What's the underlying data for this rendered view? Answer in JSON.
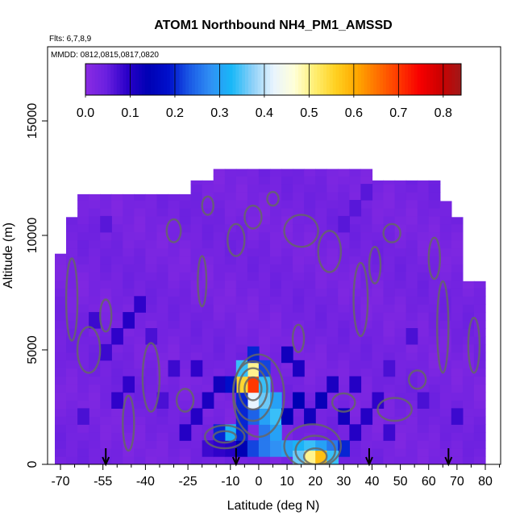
{
  "chart_data": {
    "type": "heatmap",
    "title": "ATOM1 Northbound NH4_PM1_AMSSD",
    "subtitle_lines": [
      "Flts: 6,7,8,9",
      "MMDD: 0812,0815,0817,0820"
    ],
    "xlabel": "Latitude (deg N)",
    "ylabel": "Altitude (m)",
    "xlim": [
      -72,
      85
    ],
    "ylim": [
      0,
      17500
    ],
    "x_ticks": [
      -70,
      -55,
      -40,
      -25,
      -10,
      0,
      10,
      20,
      30,
      40,
      50,
      60,
      70,
      80
    ],
    "x_tick_labels": [
      "-70",
      "-55",
      "-40",
      "-25",
      "-10",
      "0",
      "10",
      "20",
      "30",
      "40",
      "50",
      "60",
      "70",
      "80"
    ],
    "x_minor_ticks": [
      -65,
      -60,
      -50,
      -45,
      -35,
      -30,
      -20,
      -15,
      -5,
      5,
      15,
      25,
      35,
      45,
      55,
      65,
      75,
      85
    ],
    "y_ticks": [
      0,
      5000,
      10000,
      15000
    ],
    "y_tick_labels": [
      "0",
      "5000",
      "10000",
      "15000"
    ],
    "colorbar": {
      "min": 0.0,
      "max": 0.84,
      "ticks": [
        0.0,
        0.1,
        0.2,
        0.3,
        0.4,
        0.5,
        0.6,
        0.7,
        0.8
      ],
      "tick_labels": [
        "0.0",
        "0.1",
        "0.2",
        "0.3",
        "0.4",
        "0.5",
        "0.6",
        "0.7",
        "0.8"
      ],
      "colors": [
        "#8a2be2",
        "#6a20e0",
        "#2a00c8",
        "#0000b4",
        "#0010cc",
        "#1a5ae6",
        "#3090f4",
        "#18b8f8",
        "#8cd0f8",
        "#e8f4ff",
        "#ffffd8",
        "#ffee70",
        "#ffd020",
        "#ffa800",
        "#ff7000",
        "#ff3800",
        "#f80000",
        "#cc0000",
        "#a01818"
      ]
    },
    "flight_markers_lat": [
      -54,
      -8,
      39,
      67
    ],
    "profiles_lat": [
      -70,
      -66,
      -62,
      -58,
      -54,
      -50,
      -46,
      -42,
      -38,
      -34,
      -30,
      -26,
      -22,
      -18,
      -14,
      -10,
      -6,
      -2,
      2,
      6,
      10,
      14,
      18,
      22,
      26,
      30,
      34,
      38,
      42,
      46,
      50,
      54,
      58,
      62,
      66,
      70,
      74,
      78
    ],
    "profiles_top_alt": [
      9200,
      10800,
      11800,
      11800,
      11800,
      11800,
      11800,
      11800,
      11800,
      11800,
      11800,
      11800,
      12400,
      12400,
      12900,
      12900,
      12900,
      12900,
      12900,
      12900,
      12900,
      12900,
      12900,
      12900,
      12900,
      12900,
      12900,
      12900,
      12400,
      12400,
      12400,
      12400,
      12400,
      12400,
      11500,
      10800,
      8000,
      8000
    ],
    "cells": [
      {
        "x": -10,
        "y": 700,
        "v": 0.1
      },
      {
        "x": -6,
        "y": 700,
        "v": 0.14
      },
      {
        "x": -2,
        "y": 700,
        "v": 0.22
      },
      {
        "x": 2,
        "y": 700,
        "v": 0.26
      },
      {
        "x": 6,
        "y": 700,
        "v": 0.28
      },
      {
        "x": 10,
        "y": 700,
        "v": 0.3
      },
      {
        "x": 14,
        "y": 700,
        "v": 0.32
      },
      {
        "x": 18,
        "y": 700,
        "v": 0.34
      },
      {
        "x": 22,
        "y": 700,
        "v": 0.3
      },
      {
        "x": 26,
        "y": 700,
        "v": 0.26
      },
      {
        "x": 30,
        "y": 700,
        "v": 0.2
      },
      {
        "x": 18,
        "y": 250,
        "v": 0.5
      },
      {
        "x": 22,
        "y": 250,
        "v": 0.58
      },
      {
        "x": 14,
        "y": 250,
        "v": 0.36
      },
      {
        "x": 26,
        "y": 250,
        "v": 0.34
      },
      {
        "x": 2,
        "y": 1400,
        "v": 0.26
      },
      {
        "x": 6,
        "y": 1400,
        "v": 0.3
      },
      {
        "x": 2,
        "y": 2100,
        "v": 0.3
      },
      {
        "x": 6,
        "y": 2100,
        "v": 0.34
      },
      {
        "x": -2,
        "y": 2100,
        "v": 0.24
      },
      {
        "x": -2,
        "y": 2800,
        "v": 0.42
      },
      {
        "x": 2,
        "y": 2800,
        "v": 0.36
      },
      {
        "x": 6,
        "y": 2800,
        "v": 0.3
      },
      {
        "x": -6,
        "y": 2800,
        "v": 0.2
      },
      {
        "x": -2,
        "y": 3500,
        "v": 0.7
      },
      {
        "x": -6,
        "y": 3500,
        "v": 0.55
      },
      {
        "x": 2,
        "y": 3500,
        "v": 0.34
      },
      {
        "x": -10,
        "y": 3500,
        "v": 0.18
      },
      {
        "x": -2,
        "y": 4200,
        "v": 0.5
      },
      {
        "x": -6,
        "y": 4200,
        "v": 0.34
      },
      {
        "x": 2,
        "y": 4200,
        "v": 0.22
      },
      {
        "x": -2,
        "y": 4800,
        "v": 0.2
      },
      {
        "x": -6,
        "y": 2100,
        "v": 0.2
      },
      {
        "x": -10,
        "y": 1400,
        "v": 0.32
      },
      {
        "x": -14,
        "y": 1400,
        "v": 0.2
      },
      {
        "x": -6,
        "y": 1400,
        "v": 0.2
      },
      {
        "x": -18,
        "y": 700,
        "v": 0.08
      },
      {
        "x": -14,
        "y": 700,
        "v": 0.09
      },
      {
        "x": -26,
        "y": 1400,
        "v": 0.1
      },
      {
        "x": -22,
        "y": 2100,
        "v": 0.1
      },
      {
        "x": -18,
        "y": 2800,
        "v": 0.11
      },
      {
        "x": -14,
        "y": 3500,
        "v": 0.12
      },
      {
        "x": -22,
        "y": 4200,
        "v": 0.09
      },
      {
        "x": 10,
        "y": 2100,
        "v": 0.14
      },
      {
        "x": 14,
        "y": 2800,
        "v": 0.14
      },
      {
        "x": 18,
        "y": 2100,
        "v": 0.12
      },
      {
        "x": 22,
        "y": 2800,
        "v": 0.13
      },
      {
        "x": 26,
        "y": 3500,
        "v": 0.11
      },
      {
        "x": 30,
        "y": 2100,
        "v": 0.12
      },
      {
        "x": 34,
        "y": 1400,
        "v": 0.1
      },
      {
        "x": 38,
        "y": 2100,
        "v": 0.1
      },
      {
        "x": 42,
        "y": 2800,
        "v": 0.09
      },
      {
        "x": 46,
        "y": 1400,
        "v": 0.08
      },
      {
        "x": 34,
        "y": 3500,
        "v": 0.1
      },
      {
        "x": 14,
        "y": 4200,
        "v": 0.11
      },
      {
        "x": 10,
        "y": 4800,
        "v": 0.12
      },
      {
        "x": -50,
        "y": 5600,
        "v": 0.09
      },
      {
        "x": -46,
        "y": 6300,
        "v": 0.1
      },
      {
        "x": -42,
        "y": 7000,
        "v": 0.09
      },
      {
        "x": -54,
        "y": 4900,
        "v": 0.08
      },
      {
        "x": -50,
        "y": 2800,
        "v": 0.09
      },
      {
        "x": -46,
        "y": 3500,
        "v": 0.09
      },
      {
        "x": -58,
        "y": 6300,
        "v": 0.08
      },
      {
        "x": -38,
        "y": 5600,
        "v": 0.07
      },
      {
        "x": -30,
        "y": 4200,
        "v": 0.08
      },
      {
        "x": -34,
        "y": 2800,
        "v": 0.07
      },
      {
        "x": 46,
        "y": 4200,
        "v": 0.07
      },
      {
        "x": 54,
        "y": 5600,
        "v": 0.07
      },
      {
        "x": 70,
        "y": 2100,
        "v": 0.08
      },
      {
        "x": 58,
        "y": 2800,
        "v": 0.07
      },
      {
        "x": -62,
        "y": 2100,
        "v": 0.07
      },
      {
        "x": 30,
        "y": 10500,
        "v": 0.06
      },
      {
        "x": 34,
        "y": 11200,
        "v": 0.06
      },
      {
        "x": 38,
        "y": 11900,
        "v": 0.06
      },
      {
        "x": -54,
        "y": 10500,
        "v": 0.06
      }
    ],
    "contours": [
      {
        "cx": -2,
        "cy": 3300,
        "rx": 3,
        "ry": 500
      },
      {
        "cx": -2,
        "cy": 3300,
        "rx": 5,
        "ry": 900
      },
      {
        "cx": -2,
        "cy": 3200,
        "rx": 7,
        "ry": 1300
      },
      {
        "cx": 0,
        "cy": 3000,
        "rx": 9,
        "ry": 1800
      },
      {
        "cx": 20,
        "cy": 350,
        "rx": 4,
        "ry": 350
      },
      {
        "cx": 20,
        "cy": 600,
        "rx": 7,
        "ry": 650
      },
      {
        "cx": 19,
        "cy": 800,
        "rx": 10,
        "ry": 950
      },
      {
        "cx": -12,
        "cy": 1200,
        "rx": 4,
        "ry": 250
      },
      {
        "cx": -12,
        "cy": 1200,
        "rx": 7,
        "ry": 500
      },
      {
        "cx": 30,
        "cy": 2700,
        "rx": 4,
        "ry": 400
      },
      {
        "cx": -38,
        "cy": 3800,
        "rx": 3,
        "ry": 1500
      },
      {
        "cx": -54,
        "cy": 6500,
        "rx": 2,
        "ry": 700
      },
      {
        "cx": -60,
        "cy": 5000,
        "rx": 4,
        "ry": 1000
      },
      {
        "cx": 36,
        "cy": 7200,
        "rx": 2.5,
        "ry": 1600
      },
      {
        "cx": 41,
        "cy": 8700,
        "rx": 2,
        "ry": 800
      },
      {
        "cx": 15,
        "cy": 10200,
        "rx": 6,
        "ry": 700
      },
      {
        "cx": 25,
        "cy": 9300,
        "rx": 4,
        "ry": 900
      },
      {
        "cx": -8,
        "cy": 9800,
        "rx": 3,
        "ry": 700
      },
      {
        "cx": -2,
        "cy": 10800,
        "rx": 3,
        "ry": 500
      },
      {
        "cx": 47,
        "cy": 10100,
        "rx": 3,
        "ry": 400
      },
      {
        "cx": 62,
        "cy": 9000,
        "rx": 2,
        "ry": 900
      },
      {
        "cx": 65,
        "cy": 6000,
        "rx": 2,
        "ry": 2000
      },
      {
        "cx": 76,
        "cy": 5200,
        "rx": 2,
        "ry": 1200
      },
      {
        "cx": -66,
        "cy": 7200,
        "rx": 2,
        "ry": 1800
      },
      {
        "cx": -30,
        "cy": 10200,
        "rx": 2.5,
        "ry": 500
      },
      {
        "cx": -18,
        "cy": 11300,
        "rx": 2,
        "ry": 400
      },
      {
        "cx": 5,
        "cy": 11600,
        "rx": 2,
        "ry": 300
      },
      {
        "cx": 48,
        "cy": 2400,
        "rx": 6,
        "ry": 500
      },
      {
        "cx": -26,
        "cy": 2800,
        "rx": 3,
        "ry": 500
      },
      {
        "cx": 14,
        "cy": 5500,
        "rx": 2,
        "ry": 600
      },
      {
        "cx": -20,
        "cy": 8000,
        "rx": 1.5,
        "ry": 1100
      },
      {
        "cx": 56,
        "cy": 3700,
        "rx": 3,
        "ry": 400
      },
      {
        "cx": -46,
        "cy": 1800,
        "rx": 2,
        "ry": 1200
      }
    ]
  }
}
